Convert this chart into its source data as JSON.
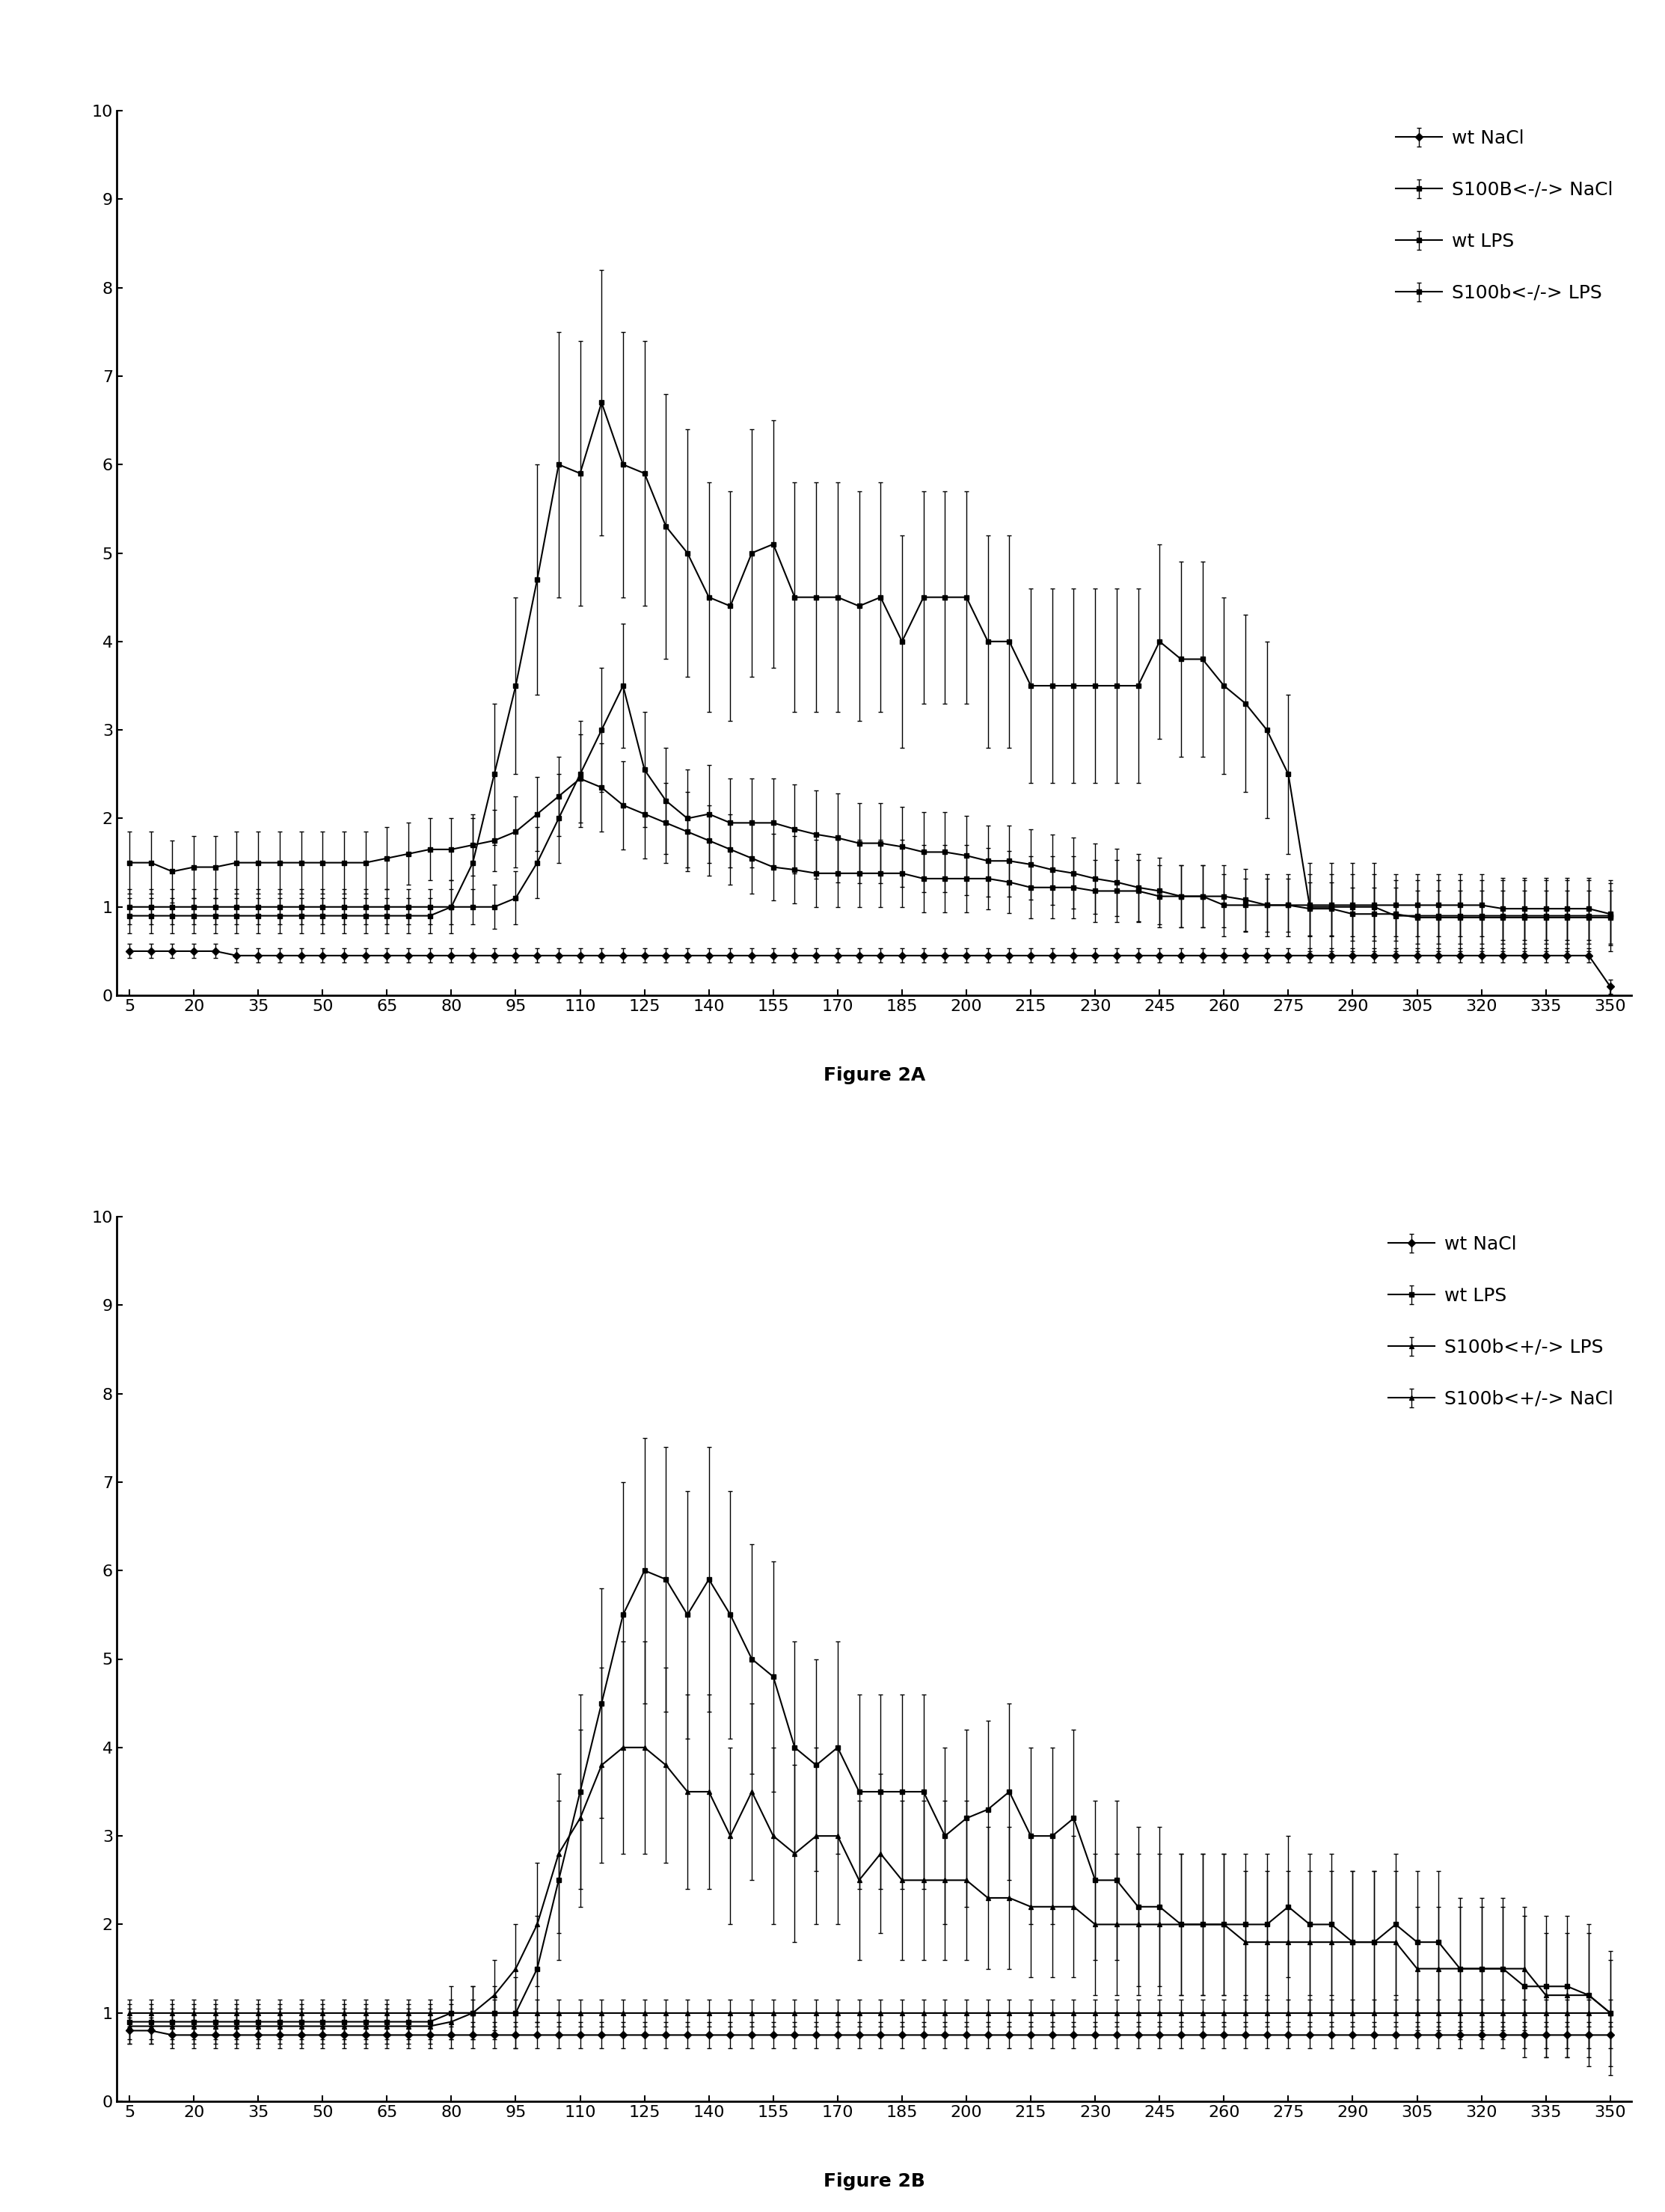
{
  "x_values": [
    5,
    10,
    15,
    20,
    25,
    30,
    35,
    40,
    45,
    50,
    55,
    60,
    65,
    70,
    75,
    80,
    85,
    90,
    95,
    100,
    105,
    110,
    115,
    120,
    125,
    130,
    135,
    140,
    145,
    150,
    155,
    160,
    165,
    170,
    175,
    180,
    185,
    190,
    195,
    200,
    205,
    210,
    215,
    220,
    225,
    230,
    235,
    240,
    245,
    250,
    255,
    260,
    265,
    270,
    275,
    280,
    285,
    290,
    295,
    300,
    305,
    310,
    315,
    320,
    325,
    330,
    335,
    340,
    345,
    350
  ],
  "x_ticks": [
    5,
    20,
    35,
    50,
    65,
    80,
    95,
    110,
    125,
    140,
    155,
    170,
    185,
    200,
    215,
    230,
    245,
    260,
    275,
    290,
    305,
    320,
    335,
    350
  ],
  "fig2a": {
    "wt_NaCl": {
      "y": [
        0.5,
        0.5,
        0.5,
        0.5,
        0.5,
        0.45,
        0.45,
        0.45,
        0.45,
        0.45,
        0.45,
        0.45,
        0.45,
        0.45,
        0.45,
        0.45,
        0.45,
        0.45,
        0.45,
        0.45,
        0.45,
        0.45,
        0.45,
        0.45,
        0.45,
        0.45,
        0.45,
        0.45,
        0.45,
        0.45,
        0.45,
        0.45,
        0.45,
        0.45,
        0.45,
        0.45,
        0.45,
        0.45,
        0.45,
        0.45,
        0.45,
        0.45,
        0.45,
        0.45,
        0.45,
        0.45,
        0.45,
        0.45,
        0.45,
        0.45,
        0.45,
        0.45,
        0.45,
        0.45,
        0.45,
        0.45,
        0.45,
        0.45,
        0.45,
        0.45,
        0.45,
        0.45,
        0.45,
        0.45,
        0.45,
        0.45,
        0.45,
        0.45,
        0.45,
        0.1
      ],
      "yerr": [
        0.08,
        0.08,
        0.08,
        0.08,
        0.08,
        0.08,
        0.08,
        0.08,
        0.08,
        0.08,
        0.08,
        0.08,
        0.08,
        0.08,
        0.08,
        0.08,
        0.08,
        0.08,
        0.08,
        0.08,
        0.08,
        0.08,
        0.08,
        0.08,
        0.08,
        0.08,
        0.08,
        0.08,
        0.08,
        0.08,
        0.08,
        0.08,
        0.08,
        0.08,
        0.08,
        0.08,
        0.08,
        0.08,
        0.08,
        0.08,
        0.08,
        0.08,
        0.08,
        0.08,
        0.08,
        0.08,
        0.08,
        0.08,
        0.08,
        0.08,
        0.08,
        0.08,
        0.08,
        0.08,
        0.08,
        0.08,
        0.08,
        0.08,
        0.08,
        0.08,
        0.08,
        0.08,
        0.08,
        0.08,
        0.08,
        0.08,
        0.08,
        0.08,
        0.08,
        0.08
      ],
      "marker": "D",
      "label": "wt NaCl"
    },
    "S100B_NaCl": {
      "y": [
        1.5,
        1.5,
        1.4,
        1.45,
        1.45,
        1.5,
        1.5,
        1.5,
        1.5,
        1.5,
        1.5,
        1.5,
        1.55,
        1.6,
        1.65,
        1.65,
        1.7,
        1.75,
        1.85,
        2.05,
        2.25,
        2.45,
        2.35,
        2.15,
        2.05,
        1.95,
        1.85,
        1.75,
        1.65,
        1.55,
        1.45,
        1.42,
        1.38,
        1.38,
        1.38,
        1.38,
        1.38,
        1.32,
        1.32,
        1.32,
        1.32,
        1.28,
        1.22,
        1.22,
        1.22,
        1.18,
        1.18,
        1.18,
        1.12,
        1.12,
        1.12,
        1.12,
        1.08,
        1.02,
        1.02,
        1.02,
        1.02,
        1.02,
        1.02,
        1.02,
        1.02,
        1.02,
        1.02,
        1.02,
        0.98,
        0.98,
        0.98,
        0.98,
        0.98,
        0.92
      ],
      "yerr": [
        0.35,
        0.35,
        0.35,
        0.35,
        0.35,
        0.35,
        0.35,
        0.35,
        0.35,
        0.35,
        0.35,
        0.35,
        0.35,
        0.35,
        0.35,
        0.35,
        0.35,
        0.35,
        0.4,
        0.42,
        0.45,
        0.5,
        0.5,
        0.5,
        0.5,
        0.45,
        0.45,
        0.4,
        0.4,
        0.4,
        0.38,
        0.38,
        0.38,
        0.38,
        0.38,
        0.38,
        0.38,
        0.38,
        0.38,
        0.38,
        0.35,
        0.35,
        0.35,
        0.35,
        0.35,
        0.35,
        0.35,
        0.35,
        0.35,
        0.35,
        0.35,
        0.35,
        0.35,
        0.35,
        0.35,
        0.35,
        0.35,
        0.35,
        0.35,
        0.35,
        0.35,
        0.35,
        0.35,
        0.35,
        0.35,
        0.35,
        0.35,
        0.35,
        0.35,
        0.35
      ],
      "marker": "s",
      "label": "S100B<-/-> NaCl"
    },
    "wt_LPS": {
      "y": [
        1.0,
        1.0,
        1.0,
        1.0,
        1.0,
        1.0,
        1.0,
        1.0,
        1.0,
        1.0,
        1.0,
        1.0,
        1.0,
        1.0,
        1.0,
        1.0,
        1.0,
        1.0,
        1.1,
        1.5,
        2.0,
        2.5,
        3.0,
        3.5,
        2.55,
        2.2,
        2.0,
        2.05,
        1.95,
        1.95,
        1.95,
        1.88,
        1.82,
        1.78,
        1.72,
        1.72,
        1.68,
        1.62,
        1.62,
        1.58,
        1.52,
        1.52,
        1.48,
        1.42,
        1.38,
        1.32,
        1.28,
        1.22,
        1.18,
        1.12,
        1.12,
        1.02,
        1.02,
        1.02,
        1.02,
        0.98,
        0.98,
        0.92,
        0.92,
        0.92,
        0.88,
        0.88,
        0.88,
        0.88,
        0.88,
        0.88,
        0.88,
        0.88,
        0.88,
        0.88
      ],
      "yerr": [
        0.2,
        0.2,
        0.2,
        0.2,
        0.2,
        0.2,
        0.2,
        0.2,
        0.2,
        0.2,
        0.2,
        0.2,
        0.2,
        0.2,
        0.2,
        0.2,
        0.2,
        0.25,
        0.3,
        0.4,
        0.5,
        0.6,
        0.7,
        0.7,
        0.65,
        0.6,
        0.55,
        0.55,
        0.5,
        0.5,
        0.5,
        0.5,
        0.5,
        0.5,
        0.45,
        0.45,
        0.45,
        0.45,
        0.45,
        0.45,
        0.4,
        0.4,
        0.4,
        0.4,
        0.4,
        0.4,
        0.38,
        0.38,
        0.38,
        0.35,
        0.35,
        0.35,
        0.3,
        0.3,
        0.3,
        0.3,
        0.3,
        0.3,
        0.3,
        0.3,
        0.3,
        0.3,
        0.3,
        0.3,
        0.3,
        0.3,
        0.3,
        0.3,
        0.3,
        0.3
      ],
      "marker": "s",
      "label": "wt LPS"
    },
    "S100b_LPS": {
      "y": [
        0.9,
        0.9,
        0.9,
        0.9,
        0.9,
        0.9,
        0.9,
        0.9,
        0.9,
        0.9,
        0.9,
        0.9,
        0.9,
        0.9,
        0.9,
        1.0,
        1.5,
        2.5,
        3.5,
        4.7,
        6.0,
        5.9,
        6.7,
        6.0,
        5.9,
        5.3,
        5.0,
        4.5,
        4.4,
        5.0,
        5.1,
        4.5,
        4.5,
        4.5,
        4.4,
        4.5,
        4.0,
        4.5,
        4.5,
        4.5,
        4.0,
        4.0,
        3.5,
        3.5,
        3.5,
        3.5,
        3.5,
        3.5,
        4.0,
        3.8,
        3.8,
        3.5,
        3.3,
        3.0,
        2.5,
        1.0,
        1.0,
        1.0,
        1.0,
        0.9,
        0.9,
        0.9,
        0.9,
        0.9,
        0.9,
        0.9,
        0.9,
        0.9,
        0.9,
        0.9
      ],
      "yerr": [
        0.2,
        0.2,
        0.2,
        0.2,
        0.2,
        0.2,
        0.2,
        0.2,
        0.2,
        0.2,
        0.2,
        0.2,
        0.2,
        0.2,
        0.2,
        0.3,
        0.5,
        0.8,
        1.0,
        1.3,
        1.5,
        1.5,
        1.5,
        1.5,
        1.5,
        1.5,
        1.4,
        1.3,
        1.3,
        1.4,
        1.4,
        1.3,
        1.3,
        1.3,
        1.3,
        1.3,
        1.2,
        1.2,
        1.2,
        1.2,
        1.2,
        1.2,
        1.1,
        1.1,
        1.1,
        1.1,
        1.1,
        1.1,
        1.1,
        1.1,
        1.1,
        1.0,
        1.0,
        1.0,
        0.9,
        0.5,
        0.5,
        0.5,
        0.5,
        0.4,
        0.4,
        0.4,
        0.4,
        0.4,
        0.4,
        0.4,
        0.4,
        0.4,
        0.4,
        0.4
      ],
      "marker": "s",
      "label": "S100b<-/-> LPS"
    }
  },
  "fig2b": {
    "wt_NaCl": {
      "y": [
        0.8,
        0.8,
        0.75,
        0.75,
        0.75,
        0.75,
        0.75,
        0.75,
        0.75,
        0.75,
        0.75,
        0.75,
        0.75,
        0.75,
        0.75,
        0.75,
        0.75,
        0.75,
        0.75,
        0.75,
        0.75,
        0.75,
        0.75,
        0.75,
        0.75,
        0.75,
        0.75,
        0.75,
        0.75,
        0.75,
        0.75,
        0.75,
        0.75,
        0.75,
        0.75,
        0.75,
        0.75,
        0.75,
        0.75,
        0.75,
        0.75,
        0.75,
        0.75,
        0.75,
        0.75,
        0.75,
        0.75,
        0.75,
        0.75,
        0.75,
        0.75,
        0.75,
        0.75,
        0.75,
        0.75,
        0.75,
        0.75,
        0.75,
        0.75,
        0.75,
        0.75,
        0.75,
        0.75,
        0.75,
        0.75,
        0.75,
        0.75,
        0.75,
        0.75,
        0.75
      ],
      "yerr": [
        0.15,
        0.15,
        0.15,
        0.15,
        0.15,
        0.15,
        0.15,
        0.15,
        0.15,
        0.15,
        0.15,
        0.15,
        0.15,
        0.15,
        0.15,
        0.15,
        0.15,
        0.15,
        0.15,
        0.15,
        0.15,
        0.15,
        0.15,
        0.15,
        0.15,
        0.15,
        0.15,
        0.15,
        0.15,
        0.15,
        0.15,
        0.15,
        0.15,
        0.15,
        0.15,
        0.15,
        0.15,
        0.15,
        0.15,
        0.15,
        0.15,
        0.15,
        0.15,
        0.15,
        0.15,
        0.15,
        0.15,
        0.15,
        0.15,
        0.15,
        0.15,
        0.15,
        0.15,
        0.15,
        0.15,
        0.15,
        0.15,
        0.15,
        0.15,
        0.15,
        0.15,
        0.15,
        0.15,
        0.15,
        0.15,
        0.15,
        0.15,
        0.15,
        0.15,
        0.15
      ],
      "marker": "D",
      "label": "wt NaCl"
    },
    "wt_LPS": {
      "y": [
        0.9,
        0.9,
        0.9,
        0.9,
        0.9,
        0.9,
        0.9,
        0.9,
        0.9,
        0.9,
        0.9,
        0.9,
        0.9,
        0.9,
        0.9,
        1.0,
        1.0,
        1.0,
        1.0,
        1.5,
        2.5,
        3.5,
        4.5,
        5.5,
        6.0,
        5.9,
        5.5,
        5.9,
        5.5,
        5.0,
        4.8,
        4.0,
        3.8,
        4.0,
        3.5,
        3.5,
        3.5,
        3.5,
        3.0,
        3.2,
        3.3,
        3.5,
        3.0,
        3.0,
        3.2,
        2.5,
        2.5,
        2.2,
        2.2,
        2.0,
        2.0,
        2.0,
        2.0,
        2.0,
        2.2,
        2.0,
        2.0,
        1.8,
        1.8,
        2.0,
        1.8,
        1.8,
        1.5,
        1.5,
        1.5,
        1.3,
        1.3,
        1.3,
        1.2,
        1.0
      ],
      "yerr": [
        0.2,
        0.2,
        0.2,
        0.2,
        0.2,
        0.2,
        0.2,
        0.2,
        0.2,
        0.2,
        0.2,
        0.2,
        0.2,
        0.2,
        0.2,
        0.3,
        0.3,
        0.3,
        0.4,
        0.6,
        0.9,
        1.1,
        1.3,
        1.5,
        1.5,
        1.5,
        1.4,
        1.5,
        1.4,
        1.3,
        1.3,
        1.2,
        1.2,
        1.2,
        1.1,
        1.1,
        1.1,
        1.1,
        1.0,
        1.0,
        1.0,
        1.0,
        1.0,
        1.0,
        1.0,
        0.9,
        0.9,
        0.9,
        0.9,
        0.8,
        0.8,
        0.8,
        0.8,
        0.8,
        0.8,
        0.8,
        0.8,
        0.8,
        0.8,
        0.8,
        0.8,
        0.8,
        0.8,
        0.8,
        0.8,
        0.8,
        0.8,
        0.8,
        0.8,
        0.7
      ],
      "marker": "s",
      "label": "wt LPS"
    },
    "S100b_het_LPS": {
      "y": [
        0.85,
        0.85,
        0.85,
        0.85,
        0.85,
        0.85,
        0.85,
        0.85,
        0.85,
        0.85,
        0.85,
        0.85,
        0.85,
        0.85,
        0.85,
        0.9,
        1.0,
        1.2,
        1.5,
        2.0,
        2.8,
        3.2,
        3.8,
        4.0,
        4.0,
        3.8,
        3.5,
        3.5,
        3.0,
        3.5,
        3.0,
        2.8,
        3.0,
        3.0,
        2.5,
        2.8,
        2.5,
        2.5,
        2.5,
        2.5,
        2.3,
        2.3,
        2.2,
        2.2,
        2.2,
        2.0,
        2.0,
        2.0,
        2.0,
        2.0,
        2.0,
        2.0,
        1.8,
        1.8,
        1.8,
        1.8,
        1.8,
        1.8,
        1.8,
        1.8,
        1.5,
        1.5,
        1.5,
        1.5,
        1.5,
        1.5,
        1.2,
        1.2,
        1.2,
        1.0
      ],
      "yerr": [
        0.2,
        0.2,
        0.2,
        0.2,
        0.2,
        0.2,
        0.2,
        0.2,
        0.2,
        0.2,
        0.2,
        0.2,
        0.2,
        0.2,
        0.2,
        0.2,
        0.3,
        0.4,
        0.5,
        0.7,
        0.9,
        1.0,
        1.1,
        1.2,
        1.2,
        1.1,
        1.1,
        1.1,
        1.0,
        1.0,
        1.0,
        1.0,
        1.0,
        1.0,
        0.9,
        0.9,
        0.9,
        0.9,
        0.9,
        0.9,
        0.8,
        0.8,
        0.8,
        0.8,
        0.8,
        0.8,
        0.8,
        0.8,
        0.8,
        0.8,
        0.8,
        0.8,
        0.8,
        0.8,
        0.8,
        0.8,
        0.8,
        0.8,
        0.8,
        0.8,
        0.7,
        0.7,
        0.7,
        0.7,
        0.7,
        0.7,
        0.7,
        0.7,
        0.7,
        0.6
      ],
      "marker": "^",
      "label": "S100b<+/-> LPS"
    },
    "S100b_het_NaCl": {
      "y": [
        1.0,
        1.0,
        1.0,
        1.0,
        1.0,
        1.0,
        1.0,
        1.0,
        1.0,
        1.0,
        1.0,
        1.0,
        1.0,
        1.0,
        1.0,
        1.0,
        1.0,
        1.0,
        1.0,
        1.0,
        1.0,
        1.0,
        1.0,
        1.0,
        1.0,
        1.0,
        1.0,
        1.0,
        1.0,
        1.0,
        1.0,
        1.0,
        1.0,
        1.0,
        1.0,
        1.0,
        1.0,
        1.0,
        1.0,
        1.0,
        1.0,
        1.0,
        1.0,
        1.0,
        1.0,
        1.0,
        1.0,
        1.0,
        1.0,
        1.0,
        1.0,
        1.0,
        1.0,
        1.0,
        1.0,
        1.0,
        1.0,
        1.0,
        1.0,
        1.0,
        1.0,
        1.0,
        1.0,
        1.0,
        1.0,
        1.0,
        1.0,
        1.0,
        1.0,
        1.0
      ],
      "yerr": [
        0.15,
        0.15,
        0.15,
        0.15,
        0.15,
        0.15,
        0.15,
        0.15,
        0.15,
        0.15,
        0.15,
        0.15,
        0.15,
        0.15,
        0.15,
        0.15,
        0.15,
        0.15,
        0.15,
        0.15,
        0.15,
        0.15,
        0.15,
        0.15,
        0.15,
        0.15,
        0.15,
        0.15,
        0.15,
        0.15,
        0.15,
        0.15,
        0.15,
        0.15,
        0.15,
        0.15,
        0.15,
        0.15,
        0.15,
        0.15,
        0.15,
        0.15,
        0.15,
        0.15,
        0.15,
        0.15,
        0.15,
        0.15,
        0.15,
        0.15,
        0.15,
        0.15,
        0.15,
        0.15,
        0.15,
        0.15,
        0.15,
        0.15,
        0.15,
        0.15,
        0.15,
        0.15,
        0.15,
        0.15,
        0.15,
        0.15,
        0.15,
        0.15,
        0.15,
        0.15
      ],
      "marker": "^",
      "label": "S100b<+/-> NaCl"
    }
  },
  "fig2a_caption": "Figure 2A",
  "fig2b_caption": "Figure 2B",
  "ylim": [
    0,
    10
  ],
  "yticks": [
    0,
    1,
    2,
    3,
    4,
    5,
    6,
    7,
    8,
    9,
    10
  ],
  "color": "#000000",
  "linewidth": 1.5,
  "markersize": 5,
  "elinewidth": 1.0,
  "capsize": 2,
  "tick_fontsize": 16,
  "legend_fontsize": 18,
  "caption_fontsize": 18
}
